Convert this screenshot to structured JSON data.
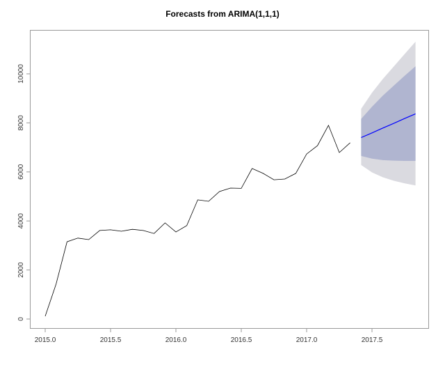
{
  "chart_data": {
    "type": "line",
    "title": "Forecasts from ARIMA(1,1,1)",
    "xlabel": "",
    "ylabel": "",
    "xlim": [
      2014.95,
      2017.9
    ],
    "ylim": [
      -350,
      11600
    ],
    "grid": false,
    "legend": null,
    "x_ticks": [
      "2015.0",
      "2015.5",
      "2016.0",
      "2016.5",
      "2017.0",
      "2017.5"
    ],
    "y_ticks": [
      "0",
      "2000",
      "4000",
      "6000",
      "8000",
      "10000"
    ],
    "series": [
      {
        "name": "observed",
        "color": "#000000",
        "x": [
          2015.0,
          2015.083,
          2015.167,
          2015.25,
          2015.333,
          2015.417,
          2015.5,
          2015.583,
          2015.667,
          2015.75,
          2015.833,
          2015.917,
          2016.0,
          2016.083,
          2016.167,
          2016.25,
          2016.333,
          2016.417,
          2016.5,
          2016.583,
          2016.667,
          2016.75,
          2016.833,
          2016.917,
          2017.0,
          2017.083,
          2017.167,
          2017.25,
          2017.333
        ],
        "values": [
          115,
          1420,
          3150,
          3300,
          3240,
          3610,
          3640,
          3580,
          3660,
          3610,
          3490,
          3920,
          3550,
          3810,
          4860,
          4800,
          5200,
          5340,
          5330,
          6140,
          5940,
          5680,
          5710,
          5940,
          6730,
          7070,
          7900,
          6790,
          7190
        ]
      },
      {
        "name": "forecast_mean",
        "color": "#0000ff",
        "x": [
          2017.417,
          2017.5,
          2017.583,
          2017.667,
          2017.75,
          2017.833
        ],
        "values": [
          7400,
          7590,
          7790,
          7980,
          8180,
          8370
        ]
      }
    ],
    "intervals": [
      {
        "name": "95%",
        "color": "#dadae0",
        "x": [
          2017.417,
          2017.5,
          2017.583,
          2017.667,
          2017.75,
          2017.833
        ],
        "upper": [
          8570,
          9230,
          9790,
          10300,
          10810,
          11310
        ],
        "lower": [
          6280,
          5980,
          5780,
          5640,
          5530,
          5450
        ]
      },
      {
        "name": "80%",
        "color": "#b0b5d0",
        "x": [
          2017.417,
          2017.5,
          2017.583,
          2017.667,
          2017.75,
          2017.833
        ],
        "upper": [
          8160,
          8660,
          9110,
          9520,
          9920,
          10310
        ],
        "lower": [
          6650,
          6540,
          6480,
          6460,
          6450,
          6450
        ]
      }
    ]
  }
}
